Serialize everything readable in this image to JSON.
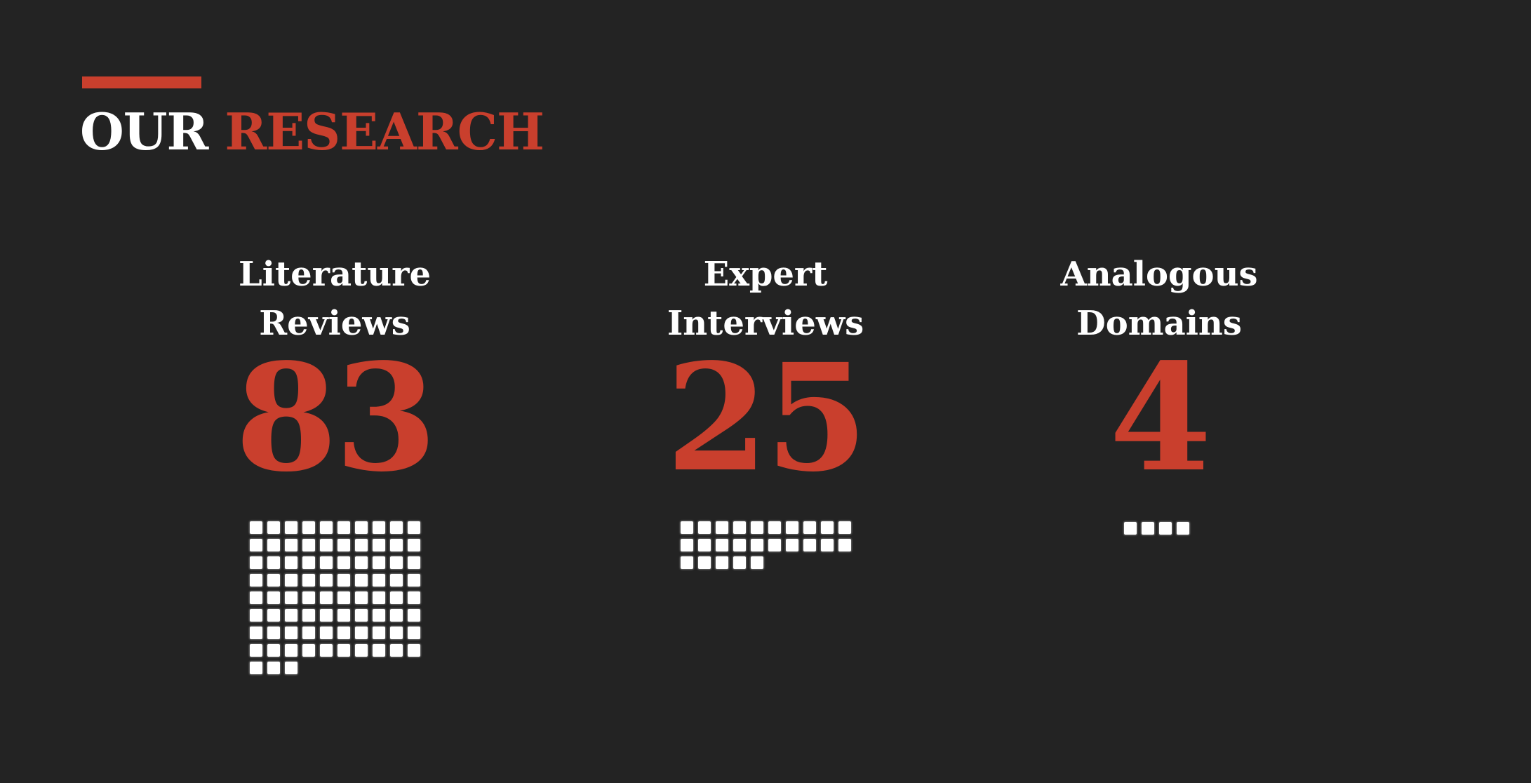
{
  "header": {
    "title_part_1": "OUR",
    "title_part_2": "RESEARCH"
  },
  "stats": [
    {
      "label_line_1": "Literature",
      "label_line_2": "Reviews",
      "value": "83",
      "count": 83
    },
    {
      "label_line_1": "Expert",
      "label_line_2": "Interviews",
      "value": "25",
      "count": 25
    },
    {
      "label_line_1": "Analogous",
      "label_line_2": "Domains",
      "value": "4",
      "count": 4
    }
  ],
  "colors": {
    "background": "#232323",
    "accent": "#c93f2d",
    "text": "#ffffff"
  }
}
